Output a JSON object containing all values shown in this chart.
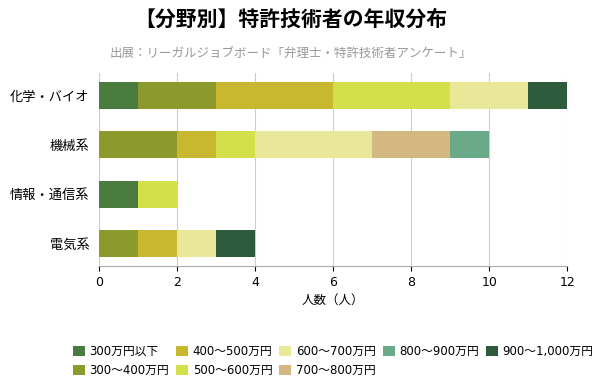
{
  "title": "》分野別》特許技術者の年収分布",
  "title_display": "【分野別】特許技術者の年収分布",
  "subtitle": "出展：リーガルジョブボード「弁理士・特許技術者アンケート」",
  "xlabel": "人数（人）",
  "categories": [
    "電気系",
    "情報・通信系",
    "機械系",
    "化学・バイオ"
  ],
  "segments": [
    {
      "label": "300万円以下",
      "color": "#4a7c3f",
      "values": [
        0,
        1,
        0,
        1
      ]
    },
    {
      "label": "300～400万円",
      "color": "#8b9a2a",
      "values": [
        1,
        0,
        2,
        2
      ]
    },
    {
      "label": "400～500万円",
      "color": "#c8b830",
      "values": [
        1,
        0,
        1,
        3
      ]
    },
    {
      "label": "500～600万円",
      "color": "#d4e04a",
      "values": [
        0,
        1,
        1,
        3
      ]
    },
    {
      "label": "600～700万円",
      "color": "#e8e898",
      "values": [
        1,
        0,
        3,
        2
      ]
    },
    {
      "label": "700～800万円",
      "color": "#d4b882",
      "values": [
        0,
        0,
        2,
        0
      ]
    },
    {
      "label": "800～900万円",
      "color": "#6aaa88",
      "values": [
        0,
        0,
        1,
        0
      ]
    },
    {
      "label": "900～1,000万円",
      "color": "#2d5a3a",
      "values": [
        1,
        0,
        0,
        1
      ]
    }
  ],
  "xlim": [
    0,
    12
  ],
  "xticks": [
    0,
    2,
    4,
    6,
    8,
    10,
    12
  ],
  "background_color": "#ffffff",
  "title_fontsize": 15,
  "subtitle_fontsize": 9,
  "axis_fontsize": 9,
  "legend_fontsize": 8.5
}
